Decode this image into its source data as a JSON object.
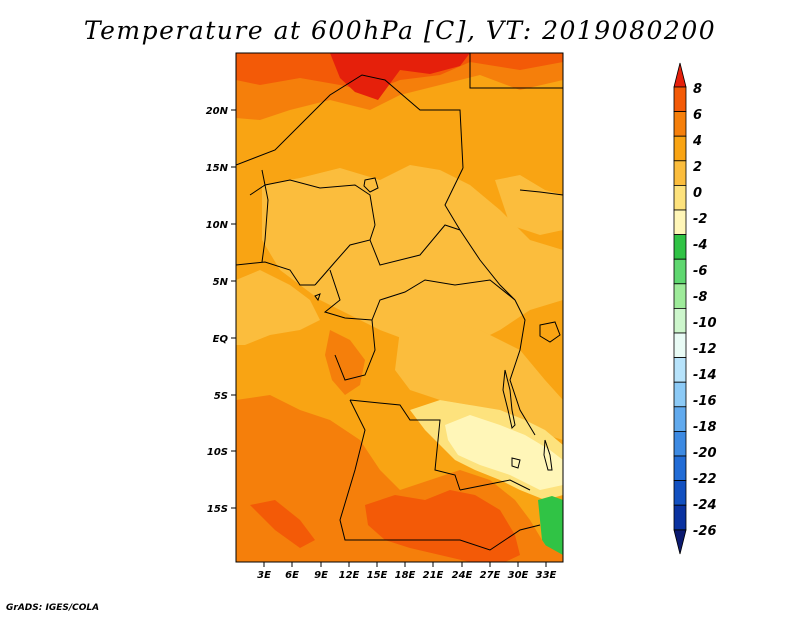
{
  "title": "Temperature at 600hPa [C], VT: 2019080200",
  "credit": "GrADS: IGES/COLA",
  "map": {
    "lat_labels": [
      "20N",
      "15N",
      "10N",
      "5N",
      "EQ",
      "5S",
      "10S",
      "15S"
    ],
    "lon_labels": [
      "3E",
      "6E",
      "9E",
      "12E",
      "15E",
      "18E",
      "21E",
      "24E",
      "27E",
      "30E",
      "33E"
    ]
  },
  "colorbar": {
    "levels": [
      "8",
      "6",
      "4",
      "2",
      "0",
      "-2",
      "-4",
      "-6",
      "-8",
      "-10",
      "-12",
      "-14",
      "-16",
      "-18",
      "-20",
      "-22",
      "-24",
      "-26"
    ],
    "colors": [
      "#e5200b",
      "#f35a07",
      "#f57f0b",
      "#f9a413",
      "#fbbd3d",
      "#fde27d",
      "#fff6b8",
      "#30c345",
      "#5fd770",
      "#9eeb9a",
      "#cdf6cc",
      "#e9fbf5",
      "#b7e3fb",
      "#8ccaf6",
      "#61aaee",
      "#3d8ae2",
      "#226cd6",
      "#1250c0",
      "#0a32a0",
      "#0b1a70"
    ]
  },
  "field_colors": {
    "t2_4": "#f9a413",
    "t0_2": "#fbbd3d",
    "t4_6": "#f57f0b",
    "t6_8": "#f35a07",
    "t8p": "#e5200b",
    "tm2_0": "#fde27d",
    "tm4_m2": "#fff6b8",
    "tm6_m4": "#30c345"
  }
}
